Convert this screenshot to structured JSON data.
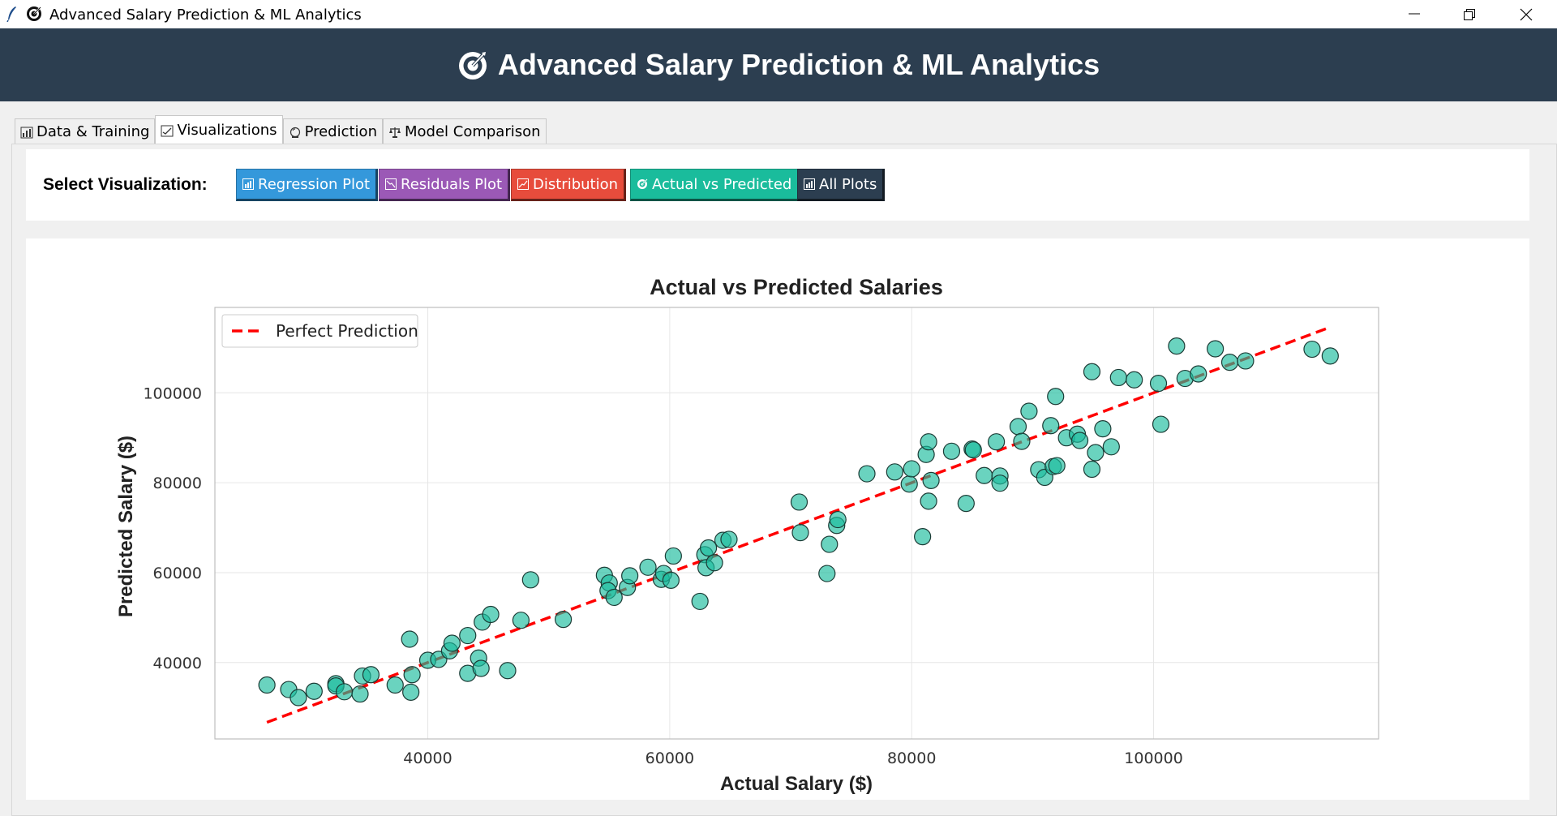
{
  "window": {
    "title": "Advanced Salary Prediction & ML Analytics",
    "icons": [
      "feather-icon",
      "target-icon"
    ],
    "controls": [
      "minimize",
      "restore",
      "close"
    ]
  },
  "header": {
    "title": "Advanced Salary Prediction & ML Analytics",
    "icon": "target-icon"
  },
  "tabs": [
    {
      "label": "Data & Training",
      "icon": "bar-chart-icon",
      "active": false
    },
    {
      "label": "Visualizations",
      "icon": "chart-check-icon",
      "active": true
    },
    {
      "label": "Prediction",
      "icon": "crystal-ball-icon",
      "active": false
    },
    {
      "label": "Model Comparison",
      "icon": "scale-icon",
      "active": false
    }
  ],
  "toolbar": {
    "label": "Select Visualization:",
    "buttons": [
      {
        "label": "Regression Plot",
        "icon": "bar-chart-icon",
        "color": "#3498db"
      },
      {
        "label": "Residuals Plot",
        "icon": "chart-down-icon",
        "color": "#9b59b6"
      },
      {
        "label": "Distribution",
        "icon": "chart-up-icon",
        "color": "#e74c3c"
      },
      {
        "label": "Actual vs Predicted",
        "icon": "target-icon",
        "color": "#1abc9c"
      },
      {
        "label": "All Plots",
        "icon": "bar-chart-icon",
        "color": "#2c3e50"
      }
    ]
  },
  "chart_data": {
    "type": "scatter",
    "title": "Actual vs Predicted Salaries",
    "xlabel": "Actual Salary ($)",
    "ylabel": "Predicted Salary ($)",
    "xlim": [
      22400,
      118600
    ],
    "ylim": [
      23000,
      119000
    ],
    "xticks": [
      40000,
      60000,
      80000,
      100000
    ],
    "yticks": [
      40000,
      60000,
      80000,
      100000
    ],
    "xtick_labels": [
      "40000",
      "60000",
      "80000",
      "100000"
    ],
    "ytick_labels": [
      "40000",
      "60000",
      "80000",
      "100000"
    ],
    "grid": true,
    "legend": {
      "position": "top-left",
      "entries": [
        "Perfect Prediction"
      ]
    },
    "perfect_line": {
      "from": 26700,
      "to": 114500,
      "color": "#ff0000",
      "style": "dashed"
    },
    "point_color": "#1abc9c",
    "points": [
      [
        26700,
        35000
      ],
      [
        28500,
        34000
      ],
      [
        29300,
        32200
      ],
      [
        30600,
        33600
      ],
      [
        32400,
        35300
      ],
      [
        32400,
        34800
      ],
      [
        33100,
        33500
      ],
      [
        34400,
        33000
      ],
      [
        34600,
        37000
      ],
      [
        35300,
        37300
      ],
      [
        37300,
        35000
      ],
      [
        38600,
        33400
      ],
      [
        38700,
        37300
      ],
      [
        38500,
        45200
      ],
      [
        40000,
        40500
      ],
      [
        40900,
        40700
      ],
      [
        41800,
        42600
      ],
      [
        42000,
        44300
      ],
      [
        43300,
        46000
      ],
      [
        43300,
        37600
      ],
      [
        44200,
        41000
      ],
      [
        44400,
        38700
      ],
      [
        44500,
        49000
      ],
      [
        45200,
        50700
      ],
      [
        46600,
        38200
      ],
      [
        47700,
        49400
      ],
      [
        48500,
        58400
      ],
      [
        51200,
        49600
      ],
      [
        54600,
        59400
      ],
      [
        55000,
        57700
      ],
      [
        54900,
        56000
      ],
      [
        55400,
        54500
      ],
      [
        56500,
        56700
      ],
      [
        56700,
        59300
      ],
      [
        58200,
        61200
      ],
      [
        59300,
        58500
      ],
      [
        59500,
        59800
      ],
      [
        60100,
        58300
      ],
      [
        60300,
        63700
      ],
      [
        62500,
        53600
      ],
      [
        62900,
        64000
      ],
      [
        63000,
        61100
      ],
      [
        63200,
        65500
      ],
      [
        63700,
        62200
      ],
      [
        64400,
        67200
      ],
      [
        64900,
        67400
      ],
      [
        70700,
        75700
      ],
      [
        70800,
        68900
      ],
      [
        73000,
        59800
      ],
      [
        73200,
        66300
      ],
      [
        73800,
        70500
      ],
      [
        73900,
        71800
      ],
      [
        76300,
        82000
      ],
      [
        78600,
        82400
      ],
      [
        79800,
        79700
      ],
      [
        80000,
        83100
      ],
      [
        80900,
        68000
      ],
      [
        81200,
        86300
      ],
      [
        81400,
        89100
      ],
      [
        81400,
        75900
      ],
      [
        81600,
        80500
      ],
      [
        83300,
        87000
      ],
      [
        84500,
        75400
      ],
      [
        85000,
        87500
      ],
      [
        85100,
        87300
      ],
      [
        86000,
        81600
      ],
      [
        87000,
        89100
      ],
      [
        87300,
        81500
      ],
      [
        87300,
        79900
      ],
      [
        88800,
        92500
      ],
      [
        89100,
        89200
      ],
      [
        89700,
        95900
      ],
      [
        90500,
        82900
      ],
      [
        91000,
        81200
      ],
      [
        91500,
        92700
      ],
      [
        91700,
        83600
      ],
      [
        92000,
        83800
      ],
      [
        91900,
        99200
      ],
      [
        92800,
        90000
      ],
      [
        93700,
        90800
      ],
      [
        93900,
        89400
      ],
      [
        94900,
        104700
      ],
      [
        94900,
        83000
      ],
      [
        95200,
        86700
      ],
      [
        95800,
        92000
      ],
      [
        96500,
        88000
      ],
      [
        97100,
        103400
      ],
      [
        98400,
        102900
      ],
      [
        100400,
        102100
      ],
      [
        100600,
        93000
      ],
      [
        101900,
        110400
      ],
      [
        102600,
        103200
      ],
      [
        103700,
        104200
      ],
      [
        105100,
        109800
      ],
      [
        106300,
        106800
      ],
      [
        107600,
        107100
      ],
      [
        113100,
        109700
      ],
      [
        114600,
        108200
      ]
    ]
  }
}
